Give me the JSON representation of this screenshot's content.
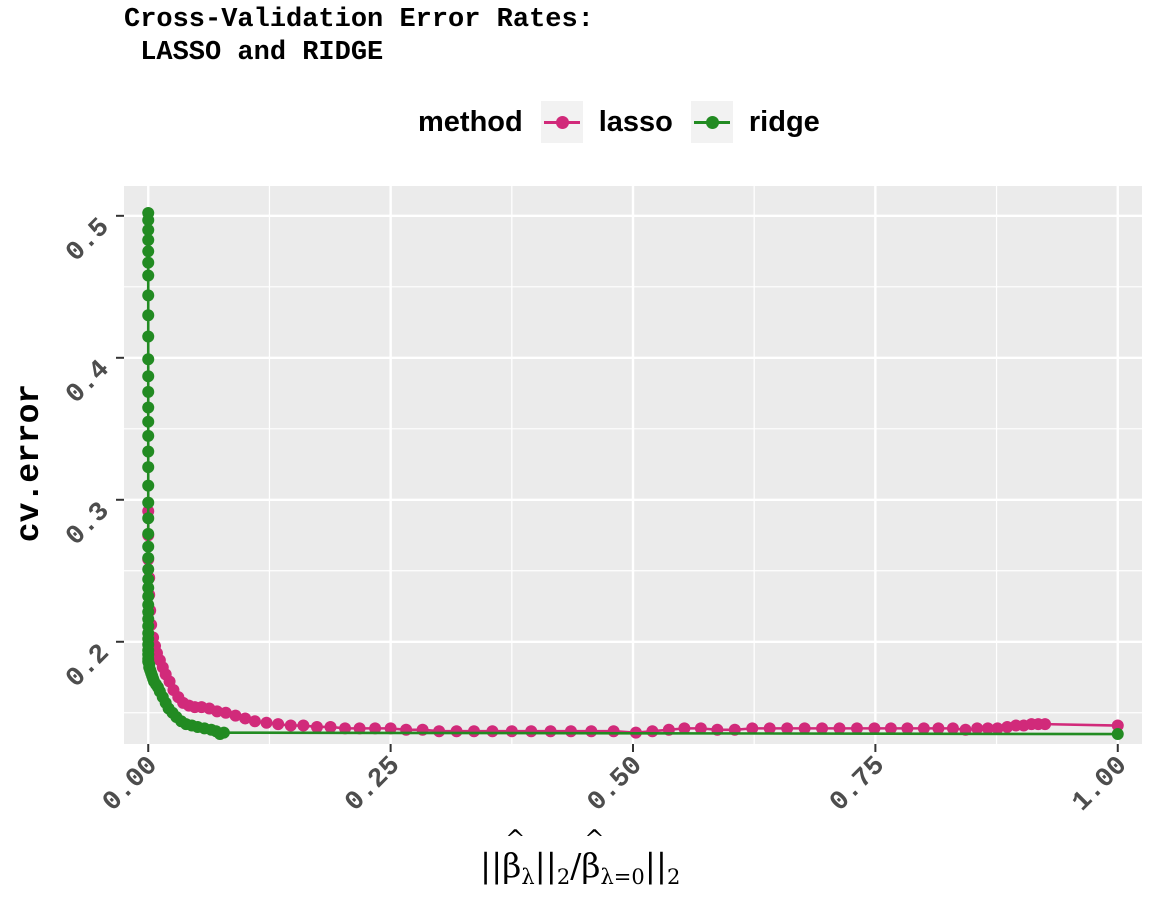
{
  "colors": {
    "lasso": "#d12a7a",
    "ridge": "#228b22",
    "panel": "#ebebeb",
    "grid": "#ffffff"
  },
  "chart_data": {
    "type": "line",
    "title": "Cross-Validation Error Rates:\n LASSO and RIDGE",
    "xlabel": "||β̂λ||2/β̂λ=0||2",
    "xlabel_parts": {
      "beta1": "β",
      "sub1": "λ",
      "mid": "||",
      "sub2": "2",
      "slash": "/",
      "beta2": "β",
      "sub3": "λ=0",
      "sub4": "2"
    },
    "ylabel": "cv.error",
    "xlim": [
      -0.025,
      1.025
    ],
    "ylim": [
      0.128,
      0.521
    ],
    "x_ticks": [
      0.0,
      0.25,
      0.5,
      0.75,
      1.0
    ],
    "x_tick_labels": [
      "0.00",
      "0.25",
      "0.50",
      "0.75",
      "1.00"
    ],
    "y_ticks": [
      0.2,
      0.3,
      0.4,
      0.5
    ],
    "y_tick_labels": [
      "0.2",
      "0.3",
      "0.4",
      "0.5"
    ],
    "legend": {
      "title": "method",
      "position": "top",
      "entries": [
        "lasso",
        "ridge"
      ]
    },
    "grid": true,
    "series": [
      {
        "name": "lasso",
        "x": [
          0.0,
          0.0,
          0.0,
          0.001,
          0.001,
          0.002,
          0.003,
          0.005,
          0.007,
          0.009,
          0.012,
          0.015,
          0.018,
          0.022,
          0.026,
          0.031,
          0.036,
          0.042,
          0.048,
          0.055,
          0.063,
          0.071,
          0.08,
          0.09,
          0.1,
          0.11,
          0.122,
          0.134,
          0.147,
          0.16,
          0.174,
          0.188,
          0.203,
          0.218,
          0.234,
          0.25,
          0.266,
          0.283,
          0.3,
          0.318,
          0.336,
          0.355,
          0.375,
          0.395,
          0.415,
          0.436,
          0.457,
          0.48,
          0.503,
          0.52,
          0.537,
          0.553,
          0.57,
          0.587,
          0.605,
          0.623,
          0.641,
          0.659,
          0.677,
          0.695,
          0.713,
          0.731,
          0.749,
          0.766,
          0.783,
          0.8,
          0.815,
          0.83,
          0.843,
          0.855,
          0.866,
          0.876,
          0.886,
          0.895,
          0.903,
          0.911,
          0.918,
          0.925,
          1.0
        ],
        "y": [
          0.292,
          0.275,
          0.258,
          0.245,
          0.233,
          0.222,
          0.212,
          0.203,
          0.197,
          0.192,
          0.187,
          0.182,
          0.177,
          0.172,
          0.166,
          0.161,
          0.157,
          0.155,
          0.154,
          0.154,
          0.153,
          0.151,
          0.15,
          0.148,
          0.146,
          0.144,
          0.143,
          0.142,
          0.141,
          0.141,
          0.14,
          0.14,
          0.139,
          0.139,
          0.139,
          0.139,
          0.138,
          0.138,
          0.137,
          0.137,
          0.137,
          0.137,
          0.137,
          0.137,
          0.137,
          0.137,
          0.137,
          0.137,
          0.136,
          0.137,
          0.138,
          0.139,
          0.139,
          0.138,
          0.138,
          0.139,
          0.139,
          0.139,
          0.139,
          0.139,
          0.139,
          0.139,
          0.139,
          0.139,
          0.139,
          0.139,
          0.139,
          0.139,
          0.138,
          0.139,
          0.139,
          0.139,
          0.14,
          0.141,
          0.141,
          0.142,
          0.142,
          0.142,
          0.141
        ]
      },
      {
        "name": "ridge",
        "x": [
          0.0,
          0.0,
          0.0,
          0.0,
          0.0,
          0.0,
          0.0,
          0.0,
          0.0,
          0.0,
          0.0,
          0.0,
          0.0,
          0.0,
          0.0,
          0.0,
          0.0,
          0.0,
          0.0,
          0.0,
          0.0,
          0.0,
          0.0,
          0.0,
          0.0,
          0.0,
          0.0,
          0.0,
          0.0,
          0.0,
          0.0,
          0.0,
          0.0,
          0.0,
          0.0,
          0.0,
          0.0,
          0.0,
          0.0,
          0.001,
          0.001,
          0.002,
          0.003,
          0.004,
          0.005,
          0.006,
          0.008,
          0.01,
          0.012,
          0.015,
          0.018,
          0.021,
          0.025,
          0.029,
          0.034,
          0.039,
          0.045,
          0.051,
          0.058,
          0.065,
          0.07,
          0.074,
          0.078,
          1.0
        ],
        "y": [
          0.502,
          0.497,
          0.49,
          0.483,
          0.475,
          0.467,
          0.458,
          0.444,
          0.43,
          0.415,
          0.399,
          0.387,
          0.376,
          0.365,
          0.355,
          0.345,
          0.334,
          0.323,
          0.31,
          0.298,
          0.287,
          0.276,
          0.267,
          0.259,
          0.251,
          0.244,
          0.238,
          0.232,
          0.226,
          0.221,
          0.216,
          0.211,
          0.206,
          0.202,
          0.198,
          0.194,
          0.191,
          0.188,
          0.186,
          0.184,
          0.182,
          0.18,
          0.178,
          0.176,
          0.174,
          0.172,
          0.17,
          0.168,
          0.165,
          0.161,
          0.157,
          0.153,
          0.15,
          0.147,
          0.144,
          0.142,
          0.141,
          0.14,
          0.139,
          0.138,
          0.137,
          0.135,
          0.136,
          0.135
        ]
      }
    ]
  }
}
